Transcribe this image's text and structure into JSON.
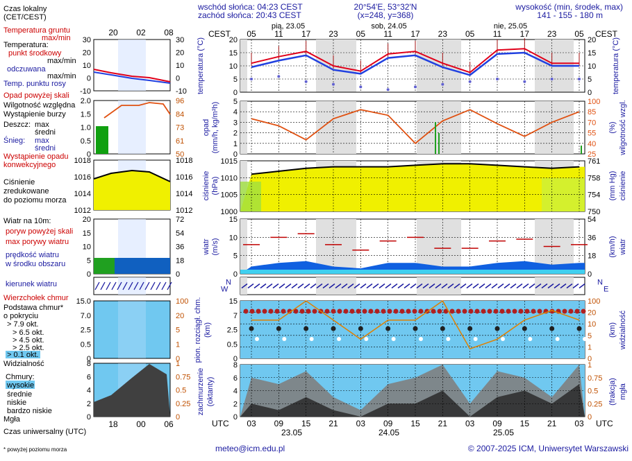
{
  "header": {
    "sunrise": "wschód słońca: 04:23 CEST",
    "sunset": "zachód słońca: 20:43 CEST",
    "coords": "20°54'E, 53°32'N",
    "grid": "(x=248,  y=368)",
    "altitude_label": "wysokość (min, środek, max)",
    "altitude_values": "141 - 155 - 180 m"
  },
  "legend": {
    "local_time": "Czas lokalny",
    "local_time_sub": "(CET/CEST)",
    "soil_temp": "Temperatura gruntu",
    "soil_temp_sub": "max/min",
    "temperature": "Temperatura:",
    "temp_center": "punkt środkowy",
    "temp_maxmin": "max/min",
    "temp_felt": "odczuwana",
    "temp_felt_maxmin": "max/min",
    "dew_point": "Temp. punktu rosy",
    "precip_above": "Opad powyżej skali",
    "humidity": "Wilgotność względna",
    "storm": "Wystąpienie burzy",
    "rain": "Deszcz:",
    "rain_max": "max",
    "rain_mid": "średni",
    "snow": "Śnieg:",
    "snow_max": "max",
    "snow_mid": "średni",
    "conv": "Wystąpienie opadu",
    "conv2": "konwekcyjnego",
    "pressure": "Ciśnienie",
    "pressure2": "zredukowane",
    "pressure3": "do poziomu morza",
    "wind_title": "Wiatr na 10m:",
    "gust_above": "poryw powyżej skali",
    "gust_max": "max porywy wiatru",
    "wind_speed": "prędkość wiatru",
    "wind_speed2": "w środku obszaru",
    "wind_dir": "kierunek wiatru",
    "cloud_top": "Wierzchołek chmur",
    "cloud_base": "Podstawa chmur*",
    "cloud_base2": "o pokryciu",
    "okt1": "> 7.9 okt.",
    "okt2": "> 6.5 okt.",
    "okt3": "> 4.5 okt.",
    "okt4": "> 2.5 okt.",
    "okt5": "> 0.1 okt.",
    "visibility": "Widzialność",
    "clouds": "Chmury:",
    "high": "wysokie",
    "mid": "średnie",
    "low": "niskie",
    "very_low": "bardzo niskie",
    "fog": "Mgła",
    "utc_time": "Czas uniwersalny (UTC)",
    "footnote": "* powyżej poziomu morza"
  },
  "footer": {
    "email": "meteo@icm.edu.pl",
    "copyright": "© 2007-2025 ICM, Uniwersytet Warszawski"
  },
  "chart_data": [
    {
      "type": "line",
      "title": "temperatura (°C)",
      "x_local_hours": [
        5,
        11,
        17,
        23,
        5,
        11,
        17,
        23,
        5,
        11,
        17,
        23,
        5
      ],
      "days": [
        "pią, 23.05",
        "sob, 24.05",
        "nie, 25.05"
      ],
      "ylim": [
        0,
        20
      ],
      "yticks": [
        0,
        5,
        10,
        15,
        20
      ],
      "series": [
        {
          "name": "punkt środkowy",
          "values": [
            11,
            13.5,
            15.5,
            10,
            8,
            14.5,
            15.5,
            11,
            7.5,
            16,
            16.5,
            11,
            11
          ]
        },
        {
          "name": "odczuwana",
          "values": [
            9.5,
            12,
            14,
            8.5,
            7,
            13,
            14,
            9.5,
            6.5,
            14.5,
            15,
            10,
            10
          ]
        },
        {
          "name": "temp. punktu rosy",
          "values": [
            5,
            6,
            4,
            3,
            2,
            1,
            2,
            3,
            4,
            5,
            4,
            5,
            5
          ]
        }
      ]
    },
    {
      "type": "line",
      "title": "opad (mm/h, kg/m²h) / wilgotność wzgl. (%)",
      "ylim": [
        0,
        5
      ],
      "yticks": [
        0,
        1,
        2,
        3,
        4,
        5
      ],
      "y2ticks": [
        25,
        40,
        55,
        70,
        85,
        100
      ],
      "series": [
        {
          "name": "wilgotność względna",
          "values": [
            75,
            65,
            45,
            75,
            88,
            80,
            40,
            72,
            88,
            68,
            50,
            70,
            85
          ]
        },
        {
          "name": "opad",
          "values": [
            0,
            0,
            0,
            0,
            0,
            0,
            0,
            0.1,
            0,
            0,
            0,
            0,
            0.5
          ]
        }
      ]
    },
    {
      "type": "area",
      "title": "ciśnienie (hPa)",
      "ylim": [
        1000,
        1017
      ],
      "yticks": [
        1000,
        1005,
        1010,
        1015
      ],
      "y2ticks": [
        750,
        754,
        758,
        761
      ],
      "series": [
        {
          "name": "ciśnienie",
          "values": [
            1012.5,
            1013.5,
            1014.5,
            1015,
            1015,
            1015,
            1015.5,
            1016,
            1016,
            1015.5,
            1015,
            1014.5,
            1015
          ]
        }
      ]
    },
    {
      "type": "area",
      "title": "wiatr (m/s)",
      "ylim": [
        0,
        15
      ],
      "yticks": [
        0,
        5,
        10,
        15
      ],
      "y2ticks": [
        0,
        18,
        36,
        54
      ],
      "series": [
        {
          "name": "prędkość wiatru",
          "values": [
            2,
            3,
            3.5,
            2,
            1.5,
            3,
            3,
            2,
            2,
            3,
            3.5,
            2.5,
            3
          ]
        },
        {
          "name": "max porywy wiatru",
          "values": [
            8,
            10,
            11,
            8,
            6.5,
            9,
            10,
            7,
            7,
            9,
            9.5,
            7.5,
            8
          ]
        }
      ]
    },
    {
      "type": "scatter",
      "title": "pion. rozciągł. chm. (km) / widzialność (km)",
      "ylim": [
        0,
        15
      ],
      "yticks": [
        0,
        0.5,
        2.5,
        7.0,
        15.0
      ],
      "y2ticks": [
        0,
        1,
        5,
        10,
        20,
        100
      ],
      "series": [
        {
          "name": "widzialność",
          "values": [
            20,
            20,
            30,
            20,
            10,
            20,
            20,
            30,
            5,
            10,
            20,
            25,
            20
          ]
        }
      ]
    },
    {
      "type": "area",
      "title": "zachmurzenie (oktanty) / mgła (frakcja)",
      "ylim": [
        0,
        8
      ],
      "yticks": [
        0,
        2,
        4,
        6,
        8
      ],
      "y2ticks": [
        0,
        0.25,
        0.5,
        0.75,
        1
      ],
      "series": [
        {
          "name": "wysokie",
          "values": [
            6,
            5,
            7,
            3,
            1,
            5,
            6,
            8,
            2,
            7,
            6,
            3,
            8
          ]
        },
        {
          "name": "niskie",
          "values": [
            2,
            1,
            3,
            1,
            0,
            2,
            2,
            4,
            0,
            3,
            4,
            2,
            5
          ]
        }
      ]
    }
  ],
  "axes": {
    "cest_label": "CEST",
    "utc_label": "UTC",
    "local_ticks": [
      "05",
      "11",
      "17",
      "23",
      "05",
      "11",
      "17",
      "23",
      "05",
      "11",
      "17",
      "23",
      "05"
    ],
    "utc_ticks": [
      "03",
      "09",
      "15",
      "21",
      "03",
      "09",
      "15",
      "21",
      "03",
      "09",
      "15",
      "21",
      "03"
    ],
    "utc_days": [
      "23.05",
      "24.05",
      "25.05"
    ],
    "days": [
      "pią, 23.05",
      "sob, 24.05",
      "nie, 25.05"
    ],
    "legend_local_ticks": [
      "20",
      "02",
      "08"
    ],
    "legend_utc_ticks": [
      "18",
      "00",
      "06"
    ],
    "ylabels_left": [
      "temperatura (°C)",
      "opad (mm/h, kg/m²h)",
      "ciśnienie (hPa)",
      "wiatr (m/s)",
      "pion. rozciągł. chm. (km)",
      "zachmurzenie (oktanty)"
    ],
    "ylabels_right": [
      "temperatura (°C)",
      "wilgotność wzgl. (%)",
      "ciśnienie (mm Hg)",
      "wiatr (km/h)",
      "widzialność (km)",
      "mgła (frakcja)"
    ],
    "wind_dir_labels": [
      "N",
      "S",
      "W",
      "E"
    ]
  },
  "legend_axis": {
    "temp_left": [
      "30",
      "20",
      "10",
      "0",
      "-10"
    ],
    "temp_right": [
      "30",
      "20",
      "10",
      "0",
      "-10"
    ],
    "precip_left": [
      "2.0",
      "1.5",
      "1.0",
      "0.5",
      "0"
    ],
    "precip_right": [
      "96",
      "84",
      "73",
      "61",
      "50"
    ],
    "pres_left": [
      "1018",
      "1016",
      "1014",
      "1012"
    ],
    "pres_right": [
      "1018",
      "1016",
      "1014",
      "1012"
    ],
    "wind_left": [
      "20",
      "15",
      "10",
      "5",
      "0"
    ],
    "wind_right": [
      "72",
      "54",
      "36",
      "18",
      "0"
    ],
    "cloud_left": [
      "15.0",
      "7.0",
      "2.5",
      "0.5",
      "0"
    ],
    "cloud_right": [
      "100",
      "20",
      "5",
      "1",
      "0"
    ],
    "cover_left": [
      "8",
      "6",
      "4",
      "2",
      "0"
    ],
    "cover_right": [
      "1",
      "0.75",
      "0.5",
      "0.25",
      "0"
    ]
  },
  "colors": {
    "temp": "#e0001a",
    "felt": "#2040e0",
    "dew": "#6060d0",
    "humidity": "#e05010",
    "pressure_fill": "#f0f000",
    "wind": "#1060e0",
    "gust": "#c00000",
    "cloud_dark": "#303030",
    "sky": "#70c8f0"
  }
}
